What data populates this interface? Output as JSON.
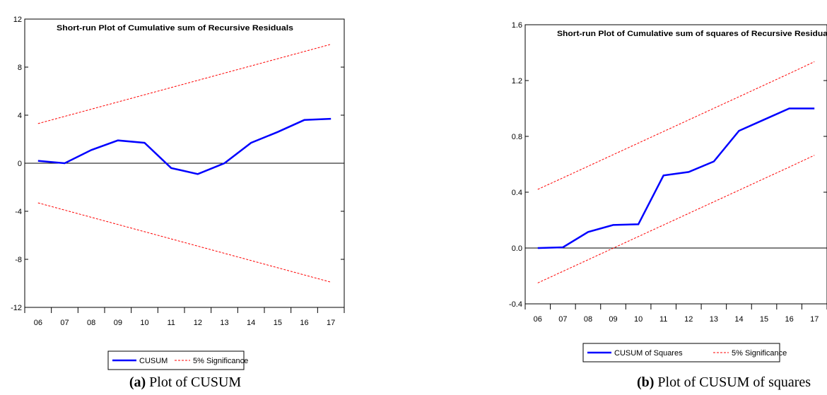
{
  "chart_data": [
    {
      "type": "line",
      "title": "Short-run Plot of Cumulative sum of Recursive Residuals",
      "categories": [
        "06",
        "07",
        "08",
        "09",
        "10",
        "11",
        "12",
        "13",
        "14",
        "15",
        "16",
        "17"
      ],
      "ylim": [
        -12,
        12
      ],
      "yticks": [
        "12",
        "8",
        "4",
        "0",
        "-4",
        "-8",
        "-12"
      ],
      "zero_line": true,
      "series": [
        {
          "name": "CUSUM",
          "style": "solid",
          "color": "#0000ff",
          "values": [
            0.2,
            0.0,
            1.1,
            1.9,
            1.7,
            -0.4,
            -0.9,
            0.0,
            1.7,
            2.6,
            3.6,
            3.7
          ]
        },
        {
          "name": "5% Significance",
          "style": "dashed",
          "color": "#ff0000",
          "values": [
            3.3,
            3.9,
            4.5,
            5.1,
            5.7,
            6.3,
            6.9,
            7.5,
            8.1,
            8.7,
            9.3,
            9.9
          ]
        },
        {
          "name": "",
          "style": "dashed",
          "color": "#ff0000",
          "values": [
            -3.3,
            -3.9,
            -4.5,
            -5.1,
            -5.7,
            -6.3,
            -6.9,
            -7.5,
            -8.1,
            -8.7,
            -9.3,
            -9.9
          ]
        }
      ],
      "legend": [
        "CUSUM",
        "5% Significance"
      ],
      "legend_position": "bottom-center",
      "caption_bold": "(a)",
      "caption_text": " Plot of CUSUM"
    },
    {
      "type": "line",
      "title": "Short-run Plot of Cumulative sum of squares of Recursive Residuals",
      "categories": [
        "06",
        "07",
        "08",
        "09",
        "10",
        "11",
        "12",
        "13",
        "14",
        "15",
        "16",
        "17"
      ],
      "ylim": [
        -0.4,
        1.6
      ],
      "yticks": [
        "1.6",
        "1.2",
        "0.8",
        "0.4",
        "0.0",
        "-0.4"
      ],
      "zero_line": true,
      "series": [
        {
          "name": "CUSUM of Squares",
          "style": "solid",
          "color": "#0000ff",
          "values": [
            0.0,
            0.005,
            0.115,
            0.165,
            0.17,
            0.52,
            0.545,
            0.62,
            0.84,
            0.92,
            1.0,
            1.0
          ]
        },
        {
          "name": "5% Significance",
          "style": "dashed",
          "color": "#ff0000",
          "values": [
            0.42,
            0.503,
            0.586,
            0.669,
            0.752,
            0.835,
            0.918,
            1.001,
            1.084,
            1.167,
            1.25,
            1.335
          ]
        },
        {
          "name": "",
          "style": "dashed",
          "color": "#ff0000",
          "values": [
            -0.25,
            -0.167,
            -0.084,
            -0.001,
            0.082,
            0.165,
            0.248,
            0.331,
            0.414,
            0.497,
            0.58,
            0.665
          ]
        }
      ],
      "legend": [
        "CUSUM of Squares",
        "5% Significance"
      ],
      "legend_position": "bottom-center",
      "caption_bold": "(b)",
      "caption_text": " Plot of CUSUM of squares"
    }
  ]
}
